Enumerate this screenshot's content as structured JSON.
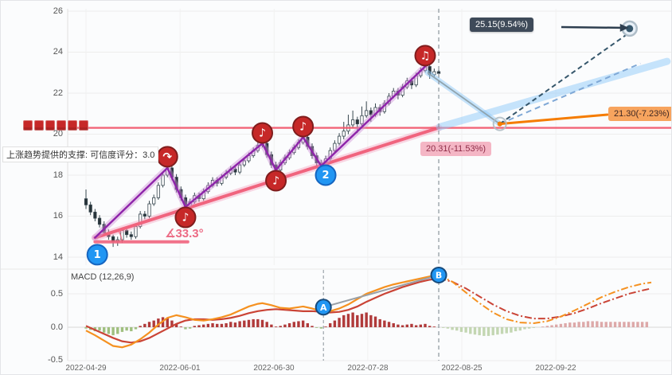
{
  "annotations": {
    "support_note": "上涨趋势提供的支撑: 可信度评分：3.0",
    "angle_label": "∡33.3°",
    "target_up": "25.15(9.54%)",
    "target_mid": "21.30(-7.23%)",
    "target_down": "20.31(-11.53%)",
    "macd_label": "MACD (12,26,9)"
  },
  "axes": {
    "y_ticks": [
      "26",
      "24",
      "22",
      "20",
      "18",
      "16",
      "14"
    ],
    "macd_ticks": [
      "0.5",
      "0.0",
      "-0.5"
    ],
    "x_ticks": [
      "2022-04-29",
      "2022-06-01",
      "2022-06-30",
      "2022-07-28",
      "2022-08-25",
      "2022-09-22"
    ]
  },
  "colors": {
    "candle_down": "#263238",
    "candle_up_fill": "#ffffff",
    "candle_stroke": "#37474f",
    "zigzag": "#8e24aa",
    "zigzag_glow": "rgba(206,147,216,0.45)",
    "support": "#f0647e",
    "support_glow": "rgba(244,143,177,0.35)",
    "resistance": "#f2556a",
    "band_blue": "rgba(144,202,249,0.5)",
    "dash_navy": "#35566b",
    "dash_light": "#7fa8d6",
    "arrow_dark": "#2e3f50",
    "orange_line": "#f57c00",
    "hist_pos": "#b03a3a",
    "hist_neg": "#9fbf7f",
    "hist_pos_proj": "#d79a9a",
    "hist_neg_proj": "#b9cfa4",
    "dif": "#f59120",
    "dea": "#ca4436",
    "marker_blue": "#2196f3",
    "marker_blue_edge": "#1565c0",
    "marker_red": "#c62828",
    "marker_red_edge": "#7f1d1d",
    "grid": "#ededed",
    "dashed_vertical": "#8a949c",
    "signal_gray": "#9aa0a6"
  },
  "chart_data": {
    "type": "candlestick",
    "price_ylim": [
      14,
      26
    ],
    "macd_ylim": [
      -0.6,
      0.85
    ],
    "y_tick_values": [
      26,
      24,
      22,
      20,
      18,
      16,
      14
    ],
    "macd_tick_values": [
      0.5,
      0.0,
      -0.5
    ],
    "x_tick_days": [
      0,
      20.8,
      41.6,
      62.3,
      83.1,
      103.9
    ],
    "divider_day": 78,
    "macd_divider_day": 52.5,
    "resistance_price": 20.31,
    "candles": [
      [
        16.85,
        17.3,
        16.35,
        16.55
      ],
      [
        16.55,
        16.7,
        16.05,
        16.2
      ],
      [
        16.2,
        16.35,
        15.75,
        15.9
      ],
      [
        15.9,
        16.05,
        15.45,
        15.6
      ],
      [
        15.6,
        15.75,
        15.05,
        15.2
      ],
      [
        15.2,
        15.35,
        14.85,
        15.0
      ],
      [
        15.0,
        15.1,
        14.5,
        14.75
      ],
      [
        14.75,
        15.0,
        14.55,
        14.85
      ],
      [
        14.85,
        15.45,
        14.7,
        15.3
      ],
      [
        15.3,
        15.45,
        14.95,
        15.1
      ],
      [
        15.1,
        15.25,
        14.85,
        15.0
      ],
      [
        15.0,
        15.65,
        14.9,
        15.5
      ],
      [
        15.5,
        16.25,
        15.4,
        16.1
      ],
      [
        16.1,
        16.25,
        15.85,
        16.0
      ],
      [
        16.0,
        16.75,
        15.9,
        16.6
      ],
      [
        16.6,
        17.05,
        16.5,
        16.9
      ],
      [
        16.9,
        17.65,
        16.8,
        17.5
      ],
      [
        17.5,
        18.15,
        17.4,
        18.0
      ],
      [
        18.0,
        18.55,
        17.9,
        18.35
      ],
      [
        18.35,
        18.5,
        17.75,
        17.9
      ],
      [
        17.9,
        18.05,
        17.15,
        17.3
      ],
      [
        17.3,
        17.45,
        16.75,
        16.9
      ],
      [
        16.9,
        17.05,
        16.3,
        16.45
      ],
      [
        16.45,
        16.85,
        16.35,
        16.7
      ],
      [
        16.7,
        17.15,
        16.6,
        17.0
      ],
      [
        17.0,
        17.15,
        16.7,
        16.85
      ],
      [
        16.85,
        17.35,
        16.75,
        17.2
      ],
      [
        17.2,
        17.65,
        17.1,
        17.5
      ],
      [
        17.5,
        17.9,
        17.4,
        17.75
      ],
      [
        17.75,
        17.9,
        17.45,
        17.6
      ],
      [
        17.6,
        18.05,
        17.5,
        17.9
      ],
      [
        17.9,
        18.25,
        17.8,
        18.1
      ],
      [
        18.1,
        18.45,
        18.0,
        18.3
      ],
      [
        18.3,
        18.45,
        18.0,
        18.15
      ],
      [
        18.15,
        18.65,
        18.05,
        18.5
      ],
      [
        18.5,
        18.85,
        18.4,
        18.7
      ],
      [
        18.7,
        19.1,
        18.6,
        18.95
      ],
      [
        18.95,
        19.35,
        18.85,
        19.2
      ],
      [
        19.2,
        19.6,
        19.1,
        19.45
      ],
      [
        19.45,
        19.75,
        19.35,
        19.55
      ],
      [
        19.55,
        19.65,
        18.85,
        19.0
      ],
      [
        19.0,
        19.15,
        18.35,
        18.5
      ],
      [
        18.5,
        18.65,
        18.1,
        18.25
      ],
      [
        18.25,
        18.75,
        18.15,
        18.6
      ],
      [
        18.6,
        19.0,
        18.5,
        18.85
      ],
      [
        18.85,
        19.25,
        18.75,
        19.1
      ],
      [
        19.1,
        19.5,
        19.0,
        19.35
      ],
      [
        19.35,
        19.75,
        19.25,
        19.6
      ],
      [
        19.6,
        20.0,
        19.5,
        19.85
      ],
      [
        19.85,
        19.95,
        19.25,
        19.4
      ],
      [
        19.4,
        19.55,
        18.8,
        18.95
      ],
      [
        18.95,
        19.1,
        18.45,
        18.6
      ],
      [
        18.6,
        18.75,
        18.3,
        18.45
      ],
      [
        18.45,
        18.95,
        18.35,
        18.8
      ],
      [
        18.8,
        19.35,
        18.7,
        19.2
      ],
      [
        19.2,
        19.7,
        19.1,
        19.55
      ],
      [
        19.55,
        20.05,
        19.45,
        19.9
      ],
      [
        19.9,
        20.6,
        19.75,
        20.15
      ],
      [
        20.15,
        20.95,
        20.0,
        20.45
      ],
      [
        20.45,
        21.15,
        20.3,
        20.7
      ],
      [
        20.7,
        20.85,
        20.05,
        20.5
      ],
      [
        20.5,
        21.35,
        20.4,
        20.9
      ],
      [
        20.9,
        21.6,
        20.8,
        21.15
      ],
      [
        21.15,
        21.3,
        20.6,
        20.95
      ],
      [
        20.95,
        21.5,
        20.85,
        21.3
      ],
      [
        21.3,
        21.45,
        20.9,
        21.1
      ],
      [
        21.1,
        21.65,
        21.0,
        21.5
      ],
      [
        21.5,
        22.0,
        21.4,
        21.85
      ],
      [
        21.85,
        22.25,
        21.75,
        22.1
      ],
      [
        22.1,
        22.25,
        21.7,
        21.9
      ],
      [
        21.9,
        22.45,
        21.8,
        22.3
      ],
      [
        22.3,
        22.75,
        22.2,
        22.6
      ],
      [
        22.6,
        22.75,
        22.2,
        22.4
      ],
      [
        22.4,
        23.0,
        22.3,
        22.85
      ],
      [
        22.85,
        23.25,
        22.75,
        23.1
      ],
      [
        23.1,
        23.45,
        23.0,
        23.3
      ],
      [
        23.3,
        23.4,
        22.7,
        22.9
      ],
      [
        22.9,
        23.2,
        22.8,
        23.05
      ],
      [
        23.05,
        23.15,
        22.75,
        22.96
      ]
    ],
    "zigzag_days": [
      2,
      18,
      22,
      39,
      42,
      48,
      52,
      75
    ],
    "zigzag_prices": [
      14.95,
      18.35,
      16.45,
      19.55,
      18.25,
      19.85,
      18.45,
      23.3
    ],
    "support": {
      "from_day": 2,
      "from_price": 14.95,
      "to_day": 78,
      "to_price": 20.31
    },
    "angle_seg": {
      "from_day": 2,
      "to_day": 22.5,
      "price": 14.75
    },
    "projection": {
      "decline": {
        "from_day": 75.5,
        "from_price": 23.0,
        "to_day": 91.5,
        "to_price": 20.5
      },
      "band": {
        "from_day": 78.2,
        "from_price": 20.35,
        "to_day": 128.5,
        "to_price": 23.55
      },
      "dash_main": {
        "from_day": 91.5,
        "from_price": 20.5,
        "to_day": 119.5,
        "to_price": 24.85
      },
      "dash_alt": {
        "from_day": 91.5,
        "from_price": 20.5,
        "to_day": 122.6,
        "to_price": 23.45
      },
      "orange": {
        "from_day": 91.5,
        "from_price": 20.5,
        "to_day": 115.3,
        "to_price": 20.95
      },
      "target_point": {
        "day": 120.2,
        "price": 25.15
      }
    },
    "markers": [
      {
        "kind": "num",
        "label": "1",
        "day": 2.5,
        "price": 14.12,
        "name": "pivot-marker-1"
      },
      {
        "kind": "num",
        "label": "2",
        "day": 53,
        "price": 18.0,
        "name": "pivot-marker-2"
      },
      {
        "kind": "arrow",
        "label": "↷",
        "day": 18,
        "price": 18.9,
        "name": "reversal-marker"
      },
      {
        "kind": "note",
        "label": "♪",
        "day": 22,
        "price": 15.94,
        "name": "note-marker-1"
      },
      {
        "kind": "note",
        "label": "♪",
        "day": 39,
        "price": 20.06,
        "name": "note-marker-2"
      },
      {
        "kind": "note",
        "label": "♪",
        "day": 42,
        "price": 17.73,
        "name": "note-marker-3"
      },
      {
        "kind": "note",
        "label": "♪",
        "day": 48,
        "price": 20.37,
        "name": "note-marker-4"
      },
      {
        "kind": "note",
        "label": "♫",
        "day": 75,
        "price": 23.83,
        "name": "note-marker-5"
      }
    ],
    "macd": {
      "hist": [
        -0.02,
        -0.04,
        -0.06,
        -0.05,
        -0.08,
        -0.1,
        -0.12,
        -0.1,
        -0.07,
        -0.05,
        -0.06,
        -0.03,
        0.02,
        0.05,
        0.08,
        0.1,
        0.13,
        0.15,
        0.14,
        0.1,
        0.05,
        0.01,
        -0.03,
        -0.02,
        0.02,
        0.03,
        0.04,
        0.05,
        0.06,
        0.05,
        0.05,
        0.06,
        0.08,
        0.07,
        0.09,
        0.1,
        0.11,
        0.12,
        0.12,
        0.11,
        0.08,
        0.04,
        0.01,
        0.02,
        0.04,
        0.06,
        0.08,
        0.09,
        0.1,
        0.06,
        0.02,
        -0.01,
        -0.02,
        0.01,
        0.06,
        0.1,
        0.14,
        0.18,
        0.2,
        0.22,
        0.18,
        0.2,
        0.22,
        0.18,
        0.16,
        0.12,
        0.1,
        0.08,
        0.06,
        0.04,
        0.03,
        0.04,
        0.05,
        0.03,
        0.04,
        0.05,
        0.02,
        0.01,
        0.0
      ],
      "proj_hist": [
        -0.01,
        -0.02,
        -0.04,
        -0.05,
        -0.07,
        -0.08,
        -0.1,
        -0.11,
        -0.12,
        -0.13,
        -0.13,
        -0.12,
        -0.11,
        -0.1,
        -0.09,
        -0.08,
        -0.06,
        -0.05,
        -0.03,
        -0.02,
        -0.01,
        0.0,
        0.01,
        0.02,
        0.03,
        0.04,
        0.05,
        0.06,
        0.07,
        0.07,
        0.08,
        0.08,
        0.09,
        0.09,
        0.09,
        0.08,
        0.08,
        0.08,
        0.08,
        0.08,
        0.08,
        0.08,
        0.08,
        0.08,
        0.08,
        0.08
      ],
      "dif": [
        [
          0,
          -0.05
        ],
        [
          2,
          -0.12
        ],
        [
          4,
          -0.2
        ],
        [
          6,
          -0.28
        ],
        [
          8,
          -0.3
        ],
        [
          10,
          -0.26
        ],
        [
          12,
          -0.18
        ],
        [
          14,
          -0.08
        ],
        [
          16,
          0.04
        ],
        [
          18,
          0.14
        ],
        [
          20,
          0.18
        ],
        [
          22,
          0.15
        ],
        [
          24,
          0.11
        ],
        [
          26,
          0.1
        ],
        [
          28,
          0.12
        ],
        [
          30,
          0.15
        ],
        [
          32,
          0.19
        ],
        [
          34,
          0.25
        ],
        [
          36,
          0.31
        ],
        [
          38,
          0.35
        ],
        [
          39,
          0.36
        ],
        [
          41,
          0.33
        ],
        [
          43,
          0.29
        ],
        [
          45,
          0.28
        ],
        [
          47,
          0.3
        ],
        [
          48,
          0.31
        ],
        [
          50,
          0.28
        ],
        [
          52,
          0.24
        ],
        [
          54,
          0.24
        ],
        [
          56,
          0.28
        ],
        [
          58,
          0.34
        ],
        [
          60,
          0.42
        ],
        [
          62,
          0.5
        ],
        [
          64,
          0.55
        ],
        [
          66,
          0.6
        ],
        [
          68,
          0.64
        ],
        [
          70,
          0.67
        ],
        [
          72,
          0.7
        ],
        [
          74,
          0.73
        ],
        [
          76,
          0.76
        ],
        [
          78,
          0.78
        ]
      ],
      "dea": [
        [
          0,
          0.02
        ],
        [
          2,
          -0.04
        ],
        [
          4,
          -0.1
        ],
        [
          6,
          -0.16
        ],
        [
          8,
          -0.21
        ],
        [
          10,
          -0.23
        ],
        [
          12,
          -0.21
        ],
        [
          14,
          -0.16
        ],
        [
          16,
          -0.09
        ],
        [
          18,
          -0.02
        ],
        [
          20,
          0.05
        ],
        [
          22,
          0.1
        ],
        [
          24,
          0.12
        ],
        [
          26,
          0.12
        ],
        [
          28,
          0.11
        ],
        [
          30,
          0.12
        ],
        [
          32,
          0.14
        ],
        [
          34,
          0.17
        ],
        [
          36,
          0.21
        ],
        [
          38,
          0.24
        ],
        [
          40,
          0.26
        ],
        [
          42,
          0.27
        ],
        [
          44,
          0.26
        ],
        [
          46,
          0.25
        ],
        [
          48,
          0.24
        ],
        [
          50,
          0.24
        ],
        [
          52,
          0.23
        ],
        [
          54,
          0.22
        ],
        [
          56,
          0.23
        ],
        [
          58,
          0.26
        ],
        [
          60,
          0.31
        ],
        [
          62,
          0.38
        ],
        [
          64,
          0.44
        ],
        [
          66,
          0.5
        ],
        [
          68,
          0.55
        ],
        [
          70,
          0.6
        ],
        [
          72,
          0.64
        ],
        [
          74,
          0.68
        ],
        [
          76,
          0.71
        ],
        [
          78,
          0.73
        ]
      ],
      "proj_dif": [
        [
          78,
          0.78
        ],
        [
          81,
          0.68
        ],
        [
          84,
          0.52
        ],
        [
          87,
          0.36
        ],
        [
          90,
          0.22
        ],
        [
          93,
          0.12
        ],
        [
          96,
          0.07
        ],
        [
          99,
          0.06
        ],
        [
          102,
          0.09
        ],
        [
          105,
          0.16
        ],
        [
          108,
          0.25
        ],
        [
          111,
          0.35
        ],
        [
          114,
          0.45
        ],
        [
          117,
          0.53
        ],
        [
          120,
          0.6
        ],
        [
          123,
          0.65
        ],
        [
          125,
          0.67
        ]
      ],
      "proj_dea": [
        [
          78,
          0.73
        ],
        [
          81,
          0.68
        ],
        [
          84,
          0.58
        ],
        [
          87,
          0.46
        ],
        [
          90,
          0.34
        ],
        [
          93,
          0.24
        ],
        [
          96,
          0.17
        ],
        [
          99,
          0.13
        ],
        [
          102,
          0.13
        ],
        [
          105,
          0.16
        ],
        [
          108,
          0.21
        ],
        [
          111,
          0.28
        ],
        [
          114,
          0.36
        ],
        [
          117,
          0.43
        ],
        [
          120,
          0.5
        ],
        [
          123,
          0.55
        ],
        [
          125,
          0.58
        ]
      ],
      "markers": [
        {
          "label": "A",
          "day": 52.5,
          "value": 0.3
        },
        {
          "label": "B",
          "day": 78,
          "value": 0.78
        }
      ]
    }
  }
}
